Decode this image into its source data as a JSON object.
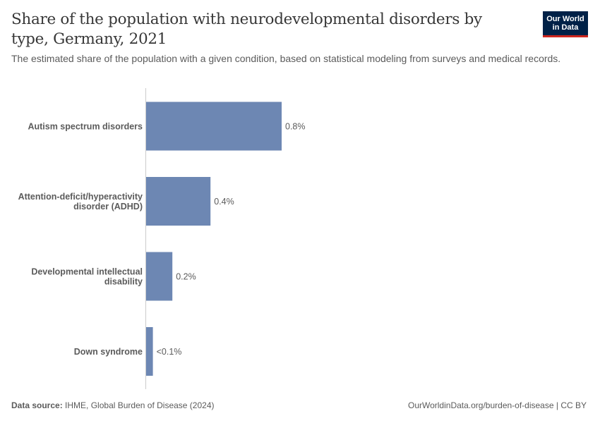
{
  "header": {
    "title": "Share of the population with neurodevelopmental disorders by type, Germany, 2021",
    "subtitle": "The estimated share of the population with a given condition, based on statistical modeling from surveys and medical records."
  },
  "logo": {
    "line1": "Our World",
    "line2": "in Data"
  },
  "footer": {
    "source_label": "Data source:",
    "source_text": "IHME, Global Burden of Disease (2024)",
    "url_text": "OurWorldinData.org/burden-of-disease | CC BY"
  },
  "colors": {
    "bar": "#6d87b3",
    "axis": "#cccccc",
    "logo_bg": "#002147",
    "logo_accent": "#ce261e"
  },
  "chart_data": {
    "type": "bar",
    "orientation": "horizontal",
    "title": "Share of the population with neurodevelopmental disorders by type, Germany, 2021",
    "categories": [
      [
        "Autism spectrum disorders"
      ],
      [
        "Attention-deficit/hyperactivity",
        "disorder (ADHD)"
      ],
      [
        "Developmental intellectual",
        "disability"
      ],
      [
        "Down syndrome"
      ]
    ],
    "values": [
      0.8,
      0.38,
      0.155,
      0.04
    ],
    "value_labels": [
      "0.8%",
      "0.4%",
      "0.2%",
      "<0.1%"
    ],
    "xlim": [
      0,
      0.8
    ],
    "unit": "%"
  }
}
